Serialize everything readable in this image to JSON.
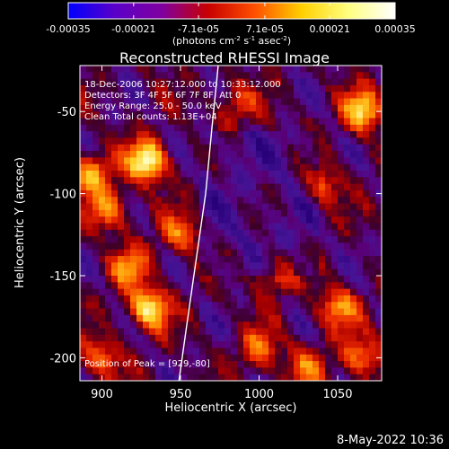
{
  "chart_data": {
    "type": "heatmap",
    "title": "Reconstructed RHESSI Image",
    "xlabel": "Heliocentric X (arcsec)",
    "ylabel": "Heliocentric Y (arcsec)",
    "xlim": [
      886,
      1078
    ],
    "ylim": [
      -214,
      -22
    ],
    "x_ticks": [
      900,
      950,
      1000,
      1050
    ],
    "y_ticks": [
      -50,
      -100,
      -150,
      -200
    ],
    "colorbar": {
      "range": [
        -0.00035,
        0.00035
      ],
      "ticks": [
        "-0.00035",
        "-0.00021",
        "-7.1e-05",
        "7.1e-05",
        "0.00021",
        "0.00035"
      ],
      "ticks_values": [
        -0.00035,
        -0.00021,
        -7.1e-05,
        7.1e-05,
        0.00021,
        0.00035
      ],
      "unit_prefix": "(photons cm",
      "unit_exp1": "-2",
      "unit_mid": " s",
      "unit_exp2": "-1",
      "unit_mid2": " asec",
      "unit_exp3": "-2",
      "unit_suffix": ")",
      "colors": [
        "#0000ff",
        "#5a00c8",
        "#8000a0",
        "#c80000",
        "#ff5000",
        "#ffd000",
        "#ffff80",
        "#ffffff"
      ]
    },
    "annotations": [
      "18-Dec-2006 10:27:12.000 to 10:33:12.000",
      "Detectors: 3F 4F 5F 6F 7F 8F, Att 0",
      "Energy Range: 25.0 - 50.0 keV",
      "Clean    Total counts: 1.13E+04"
    ],
    "peak_label": "Position of Peak = [929,-80]",
    "limb": [
      {
        "x": 974,
        "y": -22
      },
      {
        "x": 970,
        "y": -60
      },
      {
        "x": 966,
        "y": -100
      },
      {
        "x": 960,
        "y": -140
      },
      {
        "x": 954,
        "y": -180
      },
      {
        "x": 949,
        "y": -214
      }
    ],
    "bright_sources": [
      {
        "x": 929,
        "y": -80,
        "level": 1.0
      },
      {
        "x": 1066,
        "y": -50,
        "level": 0.8
      },
      {
        "x": 893,
        "y": -88,
        "level": 0.7
      },
      {
        "x": 930,
        "y": -170,
        "level": 0.85
      },
      {
        "x": 905,
        "y": -110,
        "level": 0.6
      },
      {
        "x": 918,
        "y": -145,
        "level": 0.55
      },
      {
        "x": 1050,
        "y": -170,
        "level": 0.6
      },
      {
        "x": 1065,
        "y": -200,
        "level": 0.55
      },
      {
        "x": 950,
        "y": -125,
        "level": 0.5
      },
      {
        "x": 1010,
        "y": -150,
        "level": 0.45
      },
      {
        "x": 1040,
        "y": -95,
        "level": 0.45
      },
      {
        "x": 900,
        "y": -200,
        "level": 0.5
      },
      {
        "x": 1000,
        "y": -195,
        "level": 0.5
      },
      {
        "x": 985,
        "y": -45,
        "level": 0.4
      },
      {
        "x": 1030,
        "y": -205,
        "level": 0.45
      }
    ]
  },
  "footer": {
    "timestamp": "8-May-2022 10:36"
  }
}
